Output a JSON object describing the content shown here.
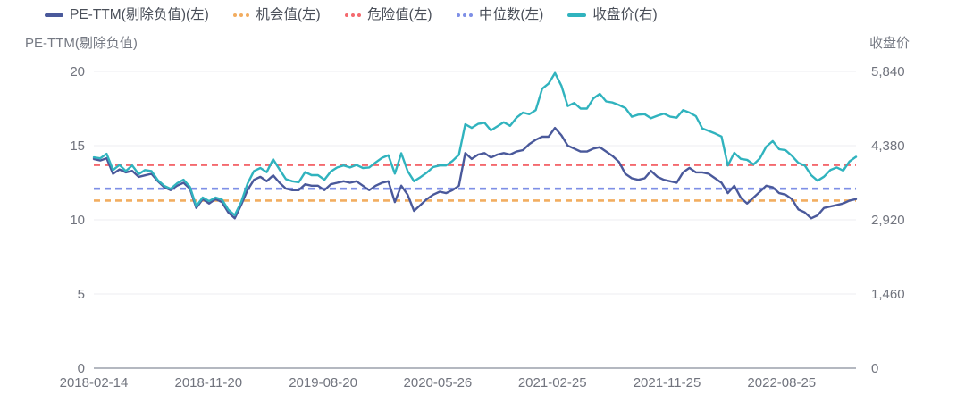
{
  "legend": {
    "items": [
      {
        "label": "PE-TTM(剔除负值)(左)",
        "color": "#4a599b",
        "style": "solid"
      },
      {
        "label": "机会值(左)",
        "color": "#f2ad60",
        "style": "dotted"
      },
      {
        "label": "危险值(左)",
        "color": "#f4696e",
        "style": "dotted"
      },
      {
        "label": "中位数(左)",
        "color": "#7e8fe6",
        "style": "dotted"
      },
      {
        "label": "收盘价(右)",
        "color": "#30b3be",
        "style": "solid"
      }
    ]
  },
  "axes": {
    "left_name": "PE-TTM(剔除负值)",
    "right_name": "收盘价",
    "left_ticks": [
      "20",
      "15",
      "10",
      "5",
      "0"
    ],
    "right_ticks": [
      "5,840",
      "4,380",
      "2,920",
      "1,460",
      "0"
    ]
  },
  "chart_data": {
    "type": "line",
    "x_ticks": [
      "2018-02-14",
      "2018-11-20",
      "2019-08-20",
      "2020-05-26",
      "2021-02-25",
      "2021-11-25",
      "2022-08-25"
    ],
    "left_axis": {
      "name": "PE-TTM(剔除负值)",
      "range": [
        0,
        20
      ],
      "ticks": [
        20,
        15,
        10,
        5,
        0
      ]
    },
    "right_axis": {
      "name": "收盘价",
      "range": [
        0,
        5840
      ],
      "ticks": [
        5840,
        4380,
        2920,
        1460,
        0
      ]
    },
    "grid": "horizontal-only",
    "legend_position": "top",
    "reference_lines": [
      {
        "name": "危险值(左)",
        "axis": "left",
        "value": 13.7,
        "color": "#f4696e"
      },
      {
        "name": "中位数(左)",
        "axis": "left",
        "value": 12.1,
        "color": "#7e8fe6"
      },
      {
        "name": "机会值(左)",
        "axis": "left",
        "value": 11.3,
        "color": "#f2ad60"
      }
    ],
    "series": [
      {
        "name": "PE-TTM(剔除负值)(左)",
        "axis": "left",
        "color": "#4a599b",
        "style": "solid",
        "values": [
          14.1,
          14.0,
          14.15,
          13.1,
          13.4,
          13.2,
          13.3,
          12.9,
          13.0,
          13.1,
          12.6,
          12.2,
          12.0,
          12.3,
          12.5,
          12.1,
          10.8,
          11.4,
          11.1,
          11.4,
          11.2,
          10.5,
          10.1,
          11.0,
          12.0,
          12.7,
          12.9,
          12.6,
          13.0,
          12.5,
          12.1,
          12.0,
          12.0,
          12.4,
          12.3,
          12.3,
          12.0,
          12.4,
          12.5,
          12.6,
          12.5,
          12.6,
          12.3,
          12.0,
          12.3,
          12.5,
          12.6,
          11.2,
          12.3,
          11.7,
          10.6,
          11.0,
          11.4,
          11.7,
          11.9,
          11.8,
          12.0,
          12.3,
          14.5,
          14.1,
          14.4,
          14.5,
          14.2,
          14.4,
          14.5,
          14.4,
          14.6,
          14.7,
          15.1,
          15.4,
          15.6,
          15.6,
          16.2,
          15.7,
          15.0,
          14.8,
          14.6,
          14.6,
          14.8,
          14.9,
          14.6,
          14.3,
          13.9,
          13.1,
          12.8,
          12.7,
          12.8,
          13.3,
          12.9,
          12.7,
          12.6,
          12.5,
          13.2,
          13.5,
          13.2,
          13.2,
          13.1,
          12.8,
          12.5,
          11.8,
          12.3,
          11.5,
          11.1,
          11.5,
          11.9,
          12.3,
          12.2,
          11.8,
          11.7,
          11.4,
          10.7,
          10.5,
          10.1,
          10.3,
          10.8,
          10.9,
          11.0,
          11.1,
          11.3,
          11.4
        ]
      },
      {
        "name": "收盘价(右)",
        "axis": "right",
        "color": "#30b3be",
        "style": "solid",
        "values": [
          4150,
          4130,
          4220,
          3900,
          4000,
          3880,
          3990,
          3820,
          3900,
          3880,
          3700,
          3590,
          3530,
          3640,
          3710,
          3570,
          3190,
          3360,
          3290,
          3360,
          3320,
          3120,
          3010,
          3270,
          3630,
          3880,
          3940,
          3860,
          4110,
          3910,
          3720,
          3680,
          3660,
          3860,
          3800,
          3800,
          3710,
          3870,
          3950,
          3990,
          3950,
          4000,
          3940,
          3950,
          4050,
          4140,
          4190,
          3830,
          4230,
          3880,
          3680,
          3760,
          3850,
          3960,
          3990,
          3990,
          4080,
          4200,
          4800,
          4730,
          4810,
          4830,
          4680,
          4760,
          4840,
          4770,
          4930,
          5030,
          5000,
          5080,
          5500,
          5600,
          5810,
          5560,
          5160,
          5220,
          5110,
          5110,
          5310,
          5400,
          5250,
          5230,
          5180,
          5120,
          4950,
          4990,
          5000,
          4920,
          4970,
          5010,
          4950,
          4930,
          5080,
          5030,
          4960,
          4720,
          4670,
          4620,
          4560,
          3990,
          4240,
          4120,
          4100,
          4010,
          4130,
          4360,
          4470,
          4310,
          4290,
          4180,
          4040,
          3990,
          3800,
          3690,
          3770,
          3900,
          3950,
          3890,
          4070,
          4160
        ]
      }
    ]
  }
}
